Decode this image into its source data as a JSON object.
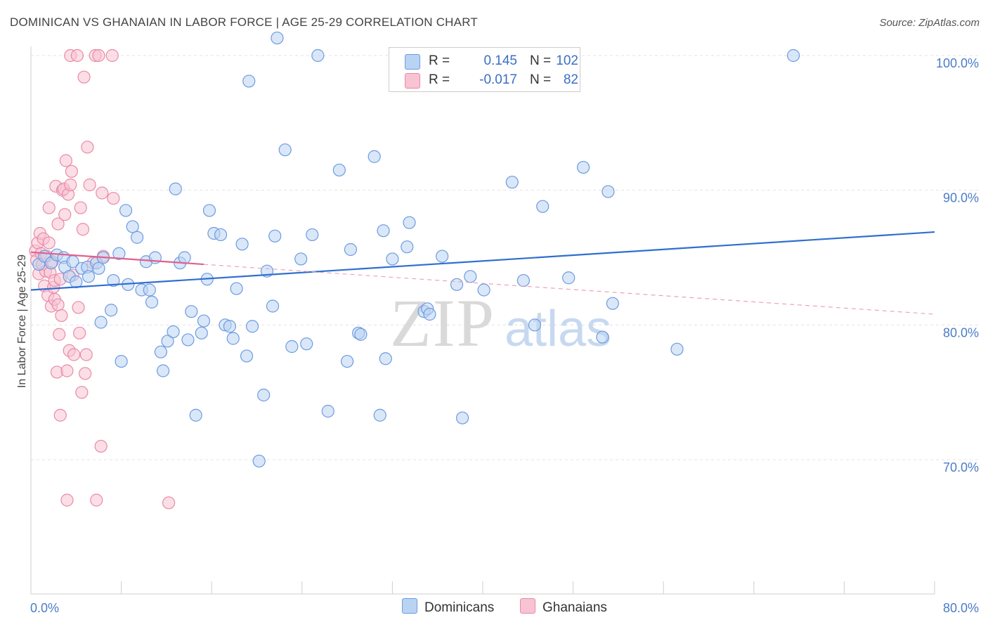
{
  "title": "DOMINICAN VS GHANAIAN IN LABOR FORCE | AGE 25-29 CORRELATION CHART",
  "source": "Source: ZipAtlas.com",
  "watermark": {
    "zip": "ZIP",
    "atlas": "atlas"
  },
  "legend": {
    "r_label": "R =",
    "n_label": "N =",
    "rows": [
      {
        "r": "0.145",
        "n": "102",
        "swatch_fill": "#b9d3f3",
        "swatch_stroke": "#6d9be0"
      },
      {
        "r": "-0.017",
        "n": "82",
        "swatch_fill": "#f8c3d2",
        "swatch_stroke": "#e98aa8"
      }
    ]
  },
  "bottom_legend": [
    "Dominicans",
    "Ghanaians"
  ],
  "chart_data": {
    "type": "scatter",
    "xlabel": "",
    "ylabel": "In Labor Force | Age 25-29",
    "xlim": [
      0,
      80
    ],
    "ylim": [
      60,
      102
    ],
    "x_tick_labels": [
      {
        "value": 0,
        "label": "0.0%"
      },
      {
        "value": 80,
        "label": "80.0%"
      }
    ],
    "y_tick_labels": [
      {
        "value": 100,
        "label": "100.0%"
      },
      {
        "value": 90,
        "label": "90.0%"
      },
      {
        "value": 80,
        "label": "80.0%"
      },
      {
        "value": 70,
        "label": "70.0%"
      }
    ],
    "grid": true,
    "legend_position": "top-center",
    "series": [
      {
        "name": "Dominicans",
        "color": "#6d9be0",
        "fill": "#b9d3f3",
        "trend": {
          "x": [
            0,
            80
          ],
          "y": [
            82.6,
            86.9
          ],
          "style": "solid"
        },
        "points": [
          [
            0.7,
            84.5
          ],
          [
            1.2,
            85.1
          ],
          [
            1.8,
            84.6
          ],
          [
            2.3,
            85.2
          ],
          [
            2.9,
            85.0
          ],
          [
            3.0,
            84.3
          ],
          [
            3.4,
            83.6
          ],
          [
            3.7,
            84.7
          ],
          [
            4.0,
            83.2
          ],
          [
            4.5,
            84.2
          ],
          [
            5.0,
            84.3
          ],
          [
            5.1,
            83.6
          ],
          [
            5.8,
            84.6
          ],
          [
            6.0,
            84.2
          ],
          [
            6.4,
            85.0
          ],
          [
            6.2,
            80.2
          ],
          [
            7.1,
            81.1
          ],
          [
            7.3,
            83.3
          ],
          [
            7.8,
            85.3
          ],
          [
            8.0,
            77.3
          ],
          [
            8.4,
            88.5
          ],
          [
            8.6,
            83.0
          ],
          [
            9.0,
            87.3
          ],
          [
            9.4,
            86.5
          ],
          [
            9.8,
            82.6
          ],
          [
            10.2,
            84.7
          ],
          [
            10.5,
            82.6
          ],
          [
            10.7,
            81.7
          ],
          [
            11.0,
            85.0
          ],
          [
            11.5,
            78.0
          ],
          [
            11.7,
            76.6
          ],
          [
            12.1,
            78.8
          ],
          [
            12.6,
            79.5
          ],
          [
            12.8,
            90.1
          ],
          [
            13.2,
            84.6
          ],
          [
            13.6,
            85.0
          ],
          [
            13.9,
            78.9
          ],
          [
            14.2,
            81.0
          ],
          [
            14.6,
            73.3
          ],
          [
            15.1,
            79.4
          ],
          [
            15.3,
            80.3
          ],
          [
            15.6,
            83.4
          ],
          [
            15.8,
            88.5
          ],
          [
            16.2,
            86.8
          ],
          [
            16.8,
            86.7
          ],
          [
            17.2,
            80.0
          ],
          [
            17.6,
            79.9
          ],
          [
            17.9,
            79.0
          ],
          [
            18.2,
            82.7
          ],
          [
            18.7,
            86.0
          ],
          [
            19.1,
            77.7
          ],
          [
            19.6,
            79.9
          ],
          [
            20.2,
            69.9
          ],
          [
            20.6,
            74.8
          ],
          [
            20.9,
            84.0
          ],
          [
            21.4,
            81.4
          ],
          [
            21.6,
            86.6
          ],
          [
            22.5,
            93.0
          ],
          [
            23.1,
            78.4
          ],
          [
            23.9,
            84.9
          ],
          [
            24.4,
            78.6
          ],
          [
            24.9,
            86.7
          ],
          [
            25.4,
            100.0
          ],
          [
            26.3,
            73.6
          ],
          [
            27.3,
            91.5
          ],
          [
            28.0,
            77.3
          ],
          [
            28.3,
            85.6
          ],
          [
            29.0,
            79.4
          ],
          [
            29.2,
            79.3
          ],
          [
            30.4,
            92.5
          ],
          [
            30.9,
            73.3
          ],
          [
            31.2,
            87.0
          ],
          [
            31.4,
            77.5
          ],
          [
            32.0,
            84.9
          ],
          [
            33.3,
            85.8
          ],
          [
            33.5,
            87.6
          ],
          [
            34.8,
            81.0
          ],
          [
            35.1,
            81.2
          ],
          [
            35.3,
            80.8
          ],
          [
            36.4,
            85.1
          ],
          [
            37.7,
            83.0
          ],
          [
            38.2,
            73.1
          ],
          [
            38.9,
            83.6
          ],
          [
            40.1,
            82.6
          ],
          [
            42.6,
            90.6
          ],
          [
            43.6,
            83.3
          ],
          [
            44.6,
            80.0
          ],
          [
            45.3,
            88.8
          ],
          [
            47.6,
            83.5
          ],
          [
            48.9,
            91.7
          ],
          [
            50.6,
            79.1
          ],
          [
            51.1,
            89.9
          ],
          [
            51.5,
            81.6
          ],
          [
            57.2,
            78.2
          ],
          [
            67.5,
            100.0
          ],
          [
            21.8,
            101.3
          ],
          [
            19.3,
            98.1
          ]
        ]
      },
      {
        "name": "Ghanaians",
        "color": "#e98aa8",
        "fill": "#f8c3d2",
        "trend": {
          "x": [
            0,
            15.3
          ],
          "y": [
            85.4,
            84.5
          ],
          "style": "solid",
          "extension": {
            "x": [
              15.3,
              80
            ],
            "y": [
              84.5,
              80.8
            ],
            "style": "dashed"
          }
        },
        "points": [
          [
            0.4,
            85.5
          ],
          [
            0.5,
            84.8
          ],
          [
            0.6,
            86.1
          ],
          [
            0.7,
            83.8
          ],
          [
            0.8,
            86.8
          ],
          [
            0.9,
            85.3
          ],
          [
            1.0,
            84.5
          ],
          [
            1.1,
            86.4
          ],
          [
            1.2,
            82.9
          ],
          [
            1.3,
            84.0
          ],
          [
            1.4,
            85.1
          ],
          [
            1.5,
            82.2
          ],
          [
            1.6,
            88.7
          ],
          [
            1.6,
            86.1
          ],
          [
            1.7,
            83.9
          ],
          [
            1.8,
            81.4
          ],
          [
            1.9,
            84.7
          ],
          [
            2.0,
            82.8
          ],
          [
            2.1,
            83.3
          ],
          [
            2.1,
            81.9
          ],
          [
            2.2,
            90.3
          ],
          [
            2.3,
            76.5
          ],
          [
            2.4,
            87.5
          ],
          [
            2.4,
            81.5
          ],
          [
            2.5,
            79.3
          ],
          [
            2.6,
            83.4
          ],
          [
            2.6,
            73.3
          ],
          [
            2.7,
            80.7
          ],
          [
            2.8,
            90.0
          ],
          [
            2.9,
            90.1
          ],
          [
            3.0,
            88.2
          ],
          [
            3.1,
            92.2
          ],
          [
            3.2,
            76.6
          ],
          [
            3.2,
            67.0
          ],
          [
            3.3,
            89.7
          ],
          [
            3.4,
            78.1
          ],
          [
            3.5,
            90.4
          ],
          [
            3.5,
            100.0
          ],
          [
            3.6,
            91.4
          ],
          [
            3.7,
            83.7
          ],
          [
            3.8,
            77.8
          ],
          [
            4.1,
            100.0
          ],
          [
            4.2,
            81.3
          ],
          [
            4.3,
            79.4
          ],
          [
            4.4,
            88.7
          ],
          [
            4.5,
            75.0
          ],
          [
            4.6,
            87.1
          ],
          [
            4.7,
            98.4
          ],
          [
            4.8,
            76.4
          ],
          [
            4.9,
            77.8
          ],
          [
            5.0,
            93.2
          ],
          [
            5.2,
            90.4
          ],
          [
            5.5,
            84.6
          ],
          [
            5.7,
            100.0
          ],
          [
            5.8,
            67.0
          ],
          [
            6.0,
            100.0
          ],
          [
            6.2,
            71.0
          ],
          [
            6.3,
            89.8
          ],
          [
            6.4,
            85.1
          ],
          [
            7.2,
            100.0
          ],
          [
            7.3,
            89.4
          ],
          [
            12.2,
            66.8
          ]
        ]
      }
    ]
  }
}
